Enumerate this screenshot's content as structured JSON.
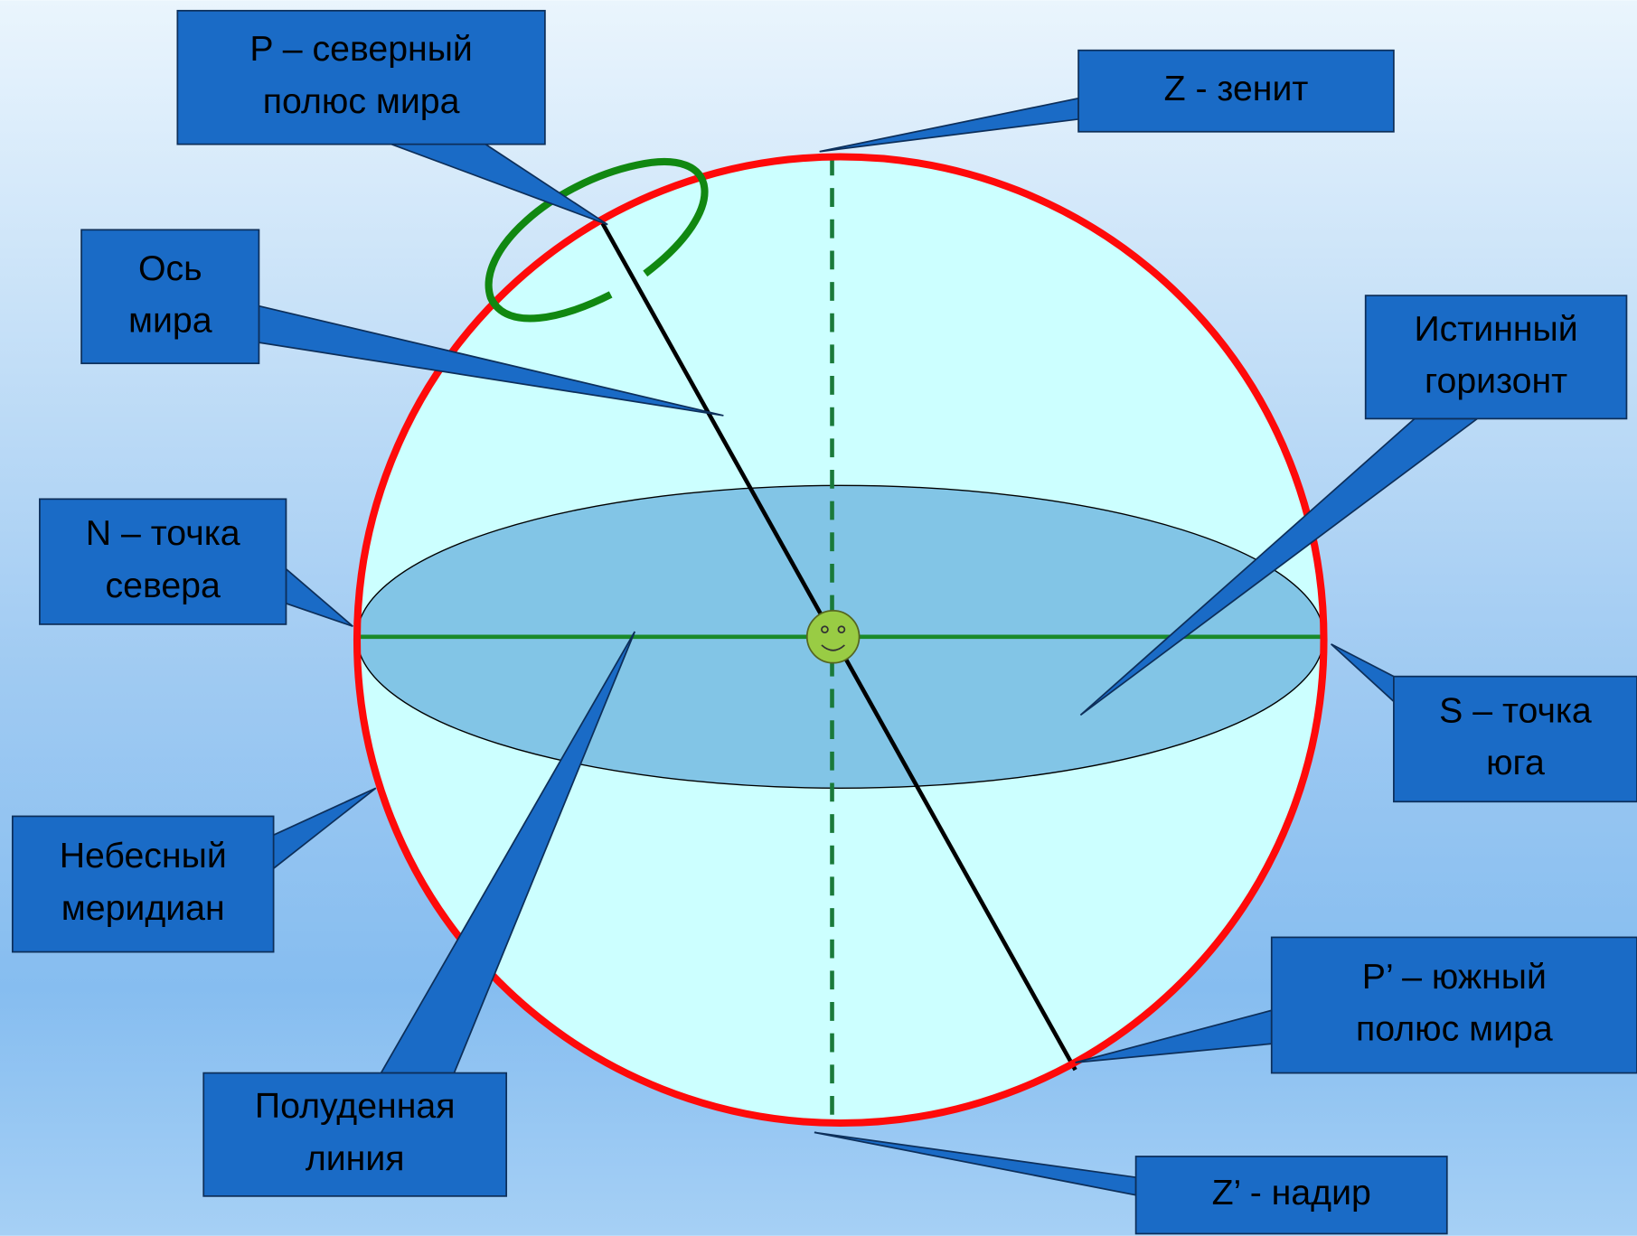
{
  "labels": [
    {
      "lines": [
        "P – северный",
        "полюс мира"
      ]
    },
    {
      "lines": [
        "Z - зенит"
      ]
    },
    {
      "lines": [
        "Ось",
        "мира"
      ]
    },
    {
      "lines": [
        "Истинный",
        "горизонт"
      ]
    },
    {
      "lines": [
        "N – точка",
        "севера"
      ]
    },
    {
      "lines": [
        "S – точка",
        "юга"
      ]
    },
    {
      "lines": [
        "Небесный",
        "меридиан"
      ]
    },
    {
      "lines": [
        "P’ – южный",
        "полюс мира"
      ]
    },
    {
      "lines": [
        "Полуденная",
        "линия"
      ]
    },
    {
      "lines": [
        "Z’ - надир"
      ]
    }
  ]
}
